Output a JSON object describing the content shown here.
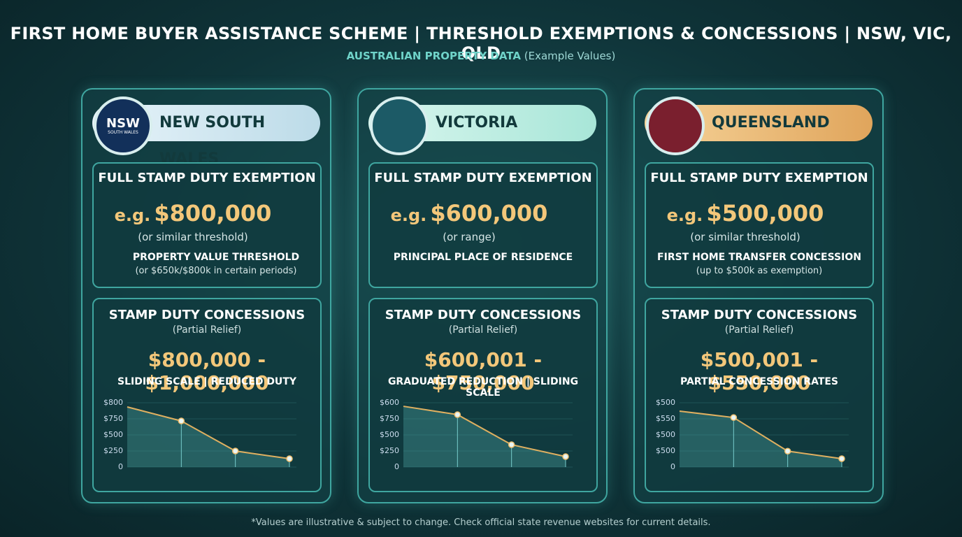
{
  "title": "FIRST HOME BUYER ASSISTANCE SCHEME | THRESHOLD EXEMPTIONS & CONCESSIONS | NSW, VIC, QLD",
  "subtitle": {
    "bold": "AUSTRALIAN PROPERTY DATA",
    "rest": "(Example Values)"
  },
  "footnote": "*Values are illustrative & subject to change. Check official state revenue websites for current details.",
  "panels": [
    {
      "state": "NEW SOUTH WALES",
      "logo": {
        "abbr": "NSW",
        "text": "SOUTH WALES"
      },
      "exemption": {
        "heading": "FULL STAMP DUTY EXEMPTION",
        "prefix": "e.g.",
        "amount": "$800,000",
        "note": "(or similar threshold)",
        "detail": "PROPERTY VALUE THRESHOLD",
        "detail_note": "(or $650k/$800k in certain periods)"
      },
      "concessions": {
        "heading": "STAMP DUTY CONCESSIONS",
        "subheading": "(Partial Relief)",
        "range": "$800,000 - $1,000,000",
        "description": "SLIDING SCALE | REDUCED DUTY",
        "chart": {
          "type": "line",
          "yticks": [
            {
              "value": 800,
              "label": "$800"
            },
            {
              "value": 750,
              "label": "$750"
            },
            {
              "value": 500,
              "label": "$500"
            },
            {
              "value": 250,
              "label": "$250"
            },
            0
          ],
          "values": [
            787,
            717,
            250,
            130
          ]
        }
      }
    },
    {
      "state": "VICTORIA",
      "exemption": {
        "heading": "FULL STAMP DUTY EXEMPTION",
        "prefix": "e.g.",
        "amount": "$600,000",
        "note": "(or range)",
        "detail": "PRINCIPAL PLACE OF RESIDENCE"
      },
      "concessions": {
        "heading": "STAMP DUTY CONCESSIONS",
        "subheading": "(Partial Relief)",
        "range": "$600,001 - $750,000",
        "description": "GRADUATED REDUCTION | SLIDING SCALE",
        "chart": {
          "type": "line",
          "yticks": [
            {
              "value": 600,
              "label": "$600"
            },
            {
              "value": 750,
              "label": "$750"
            },
            {
              "value": 500,
              "label": "$500"
            },
            {
              "value": 250,
              "label": "$250"
            },
            0
          ],
          "values": [
            633,
            711,
            348,
            163
          ]
        }
      }
    },
    {
      "state": "QUEENSLAND",
      "exemption": {
        "heading": "FULL STAMP DUTY EXEMPTION",
        "prefix": "e.g.",
        "amount": "$500,000",
        "note": "(or similar threshold)",
        "detail": "FIRST HOME TRANSFER CONCESSION",
        "detail_note": "(up to $500k as exemption)"
      },
      "concessions": {
        "heading": "STAMP DUTY CONCESSIONS",
        "subheading": "(Partial Relief)",
        "range": "$500,001 - $550,000",
        "description": "PARTIAL CONCESSION RATES",
        "chart": {
          "type": "line",
          "yticks": [
            {
              "value": 500,
              "label": "$500"
            },
            {
              "value": 550,
              "label": "$550"
            },
            {
              "value": 500,
              "label": "$500"
            },
            {
              "value": 500,
              "label": "$500"
            },
            0
          ],
          "values": [
            526,
            546,
            495,
            261
          ]
        }
      }
    }
  ]
}
